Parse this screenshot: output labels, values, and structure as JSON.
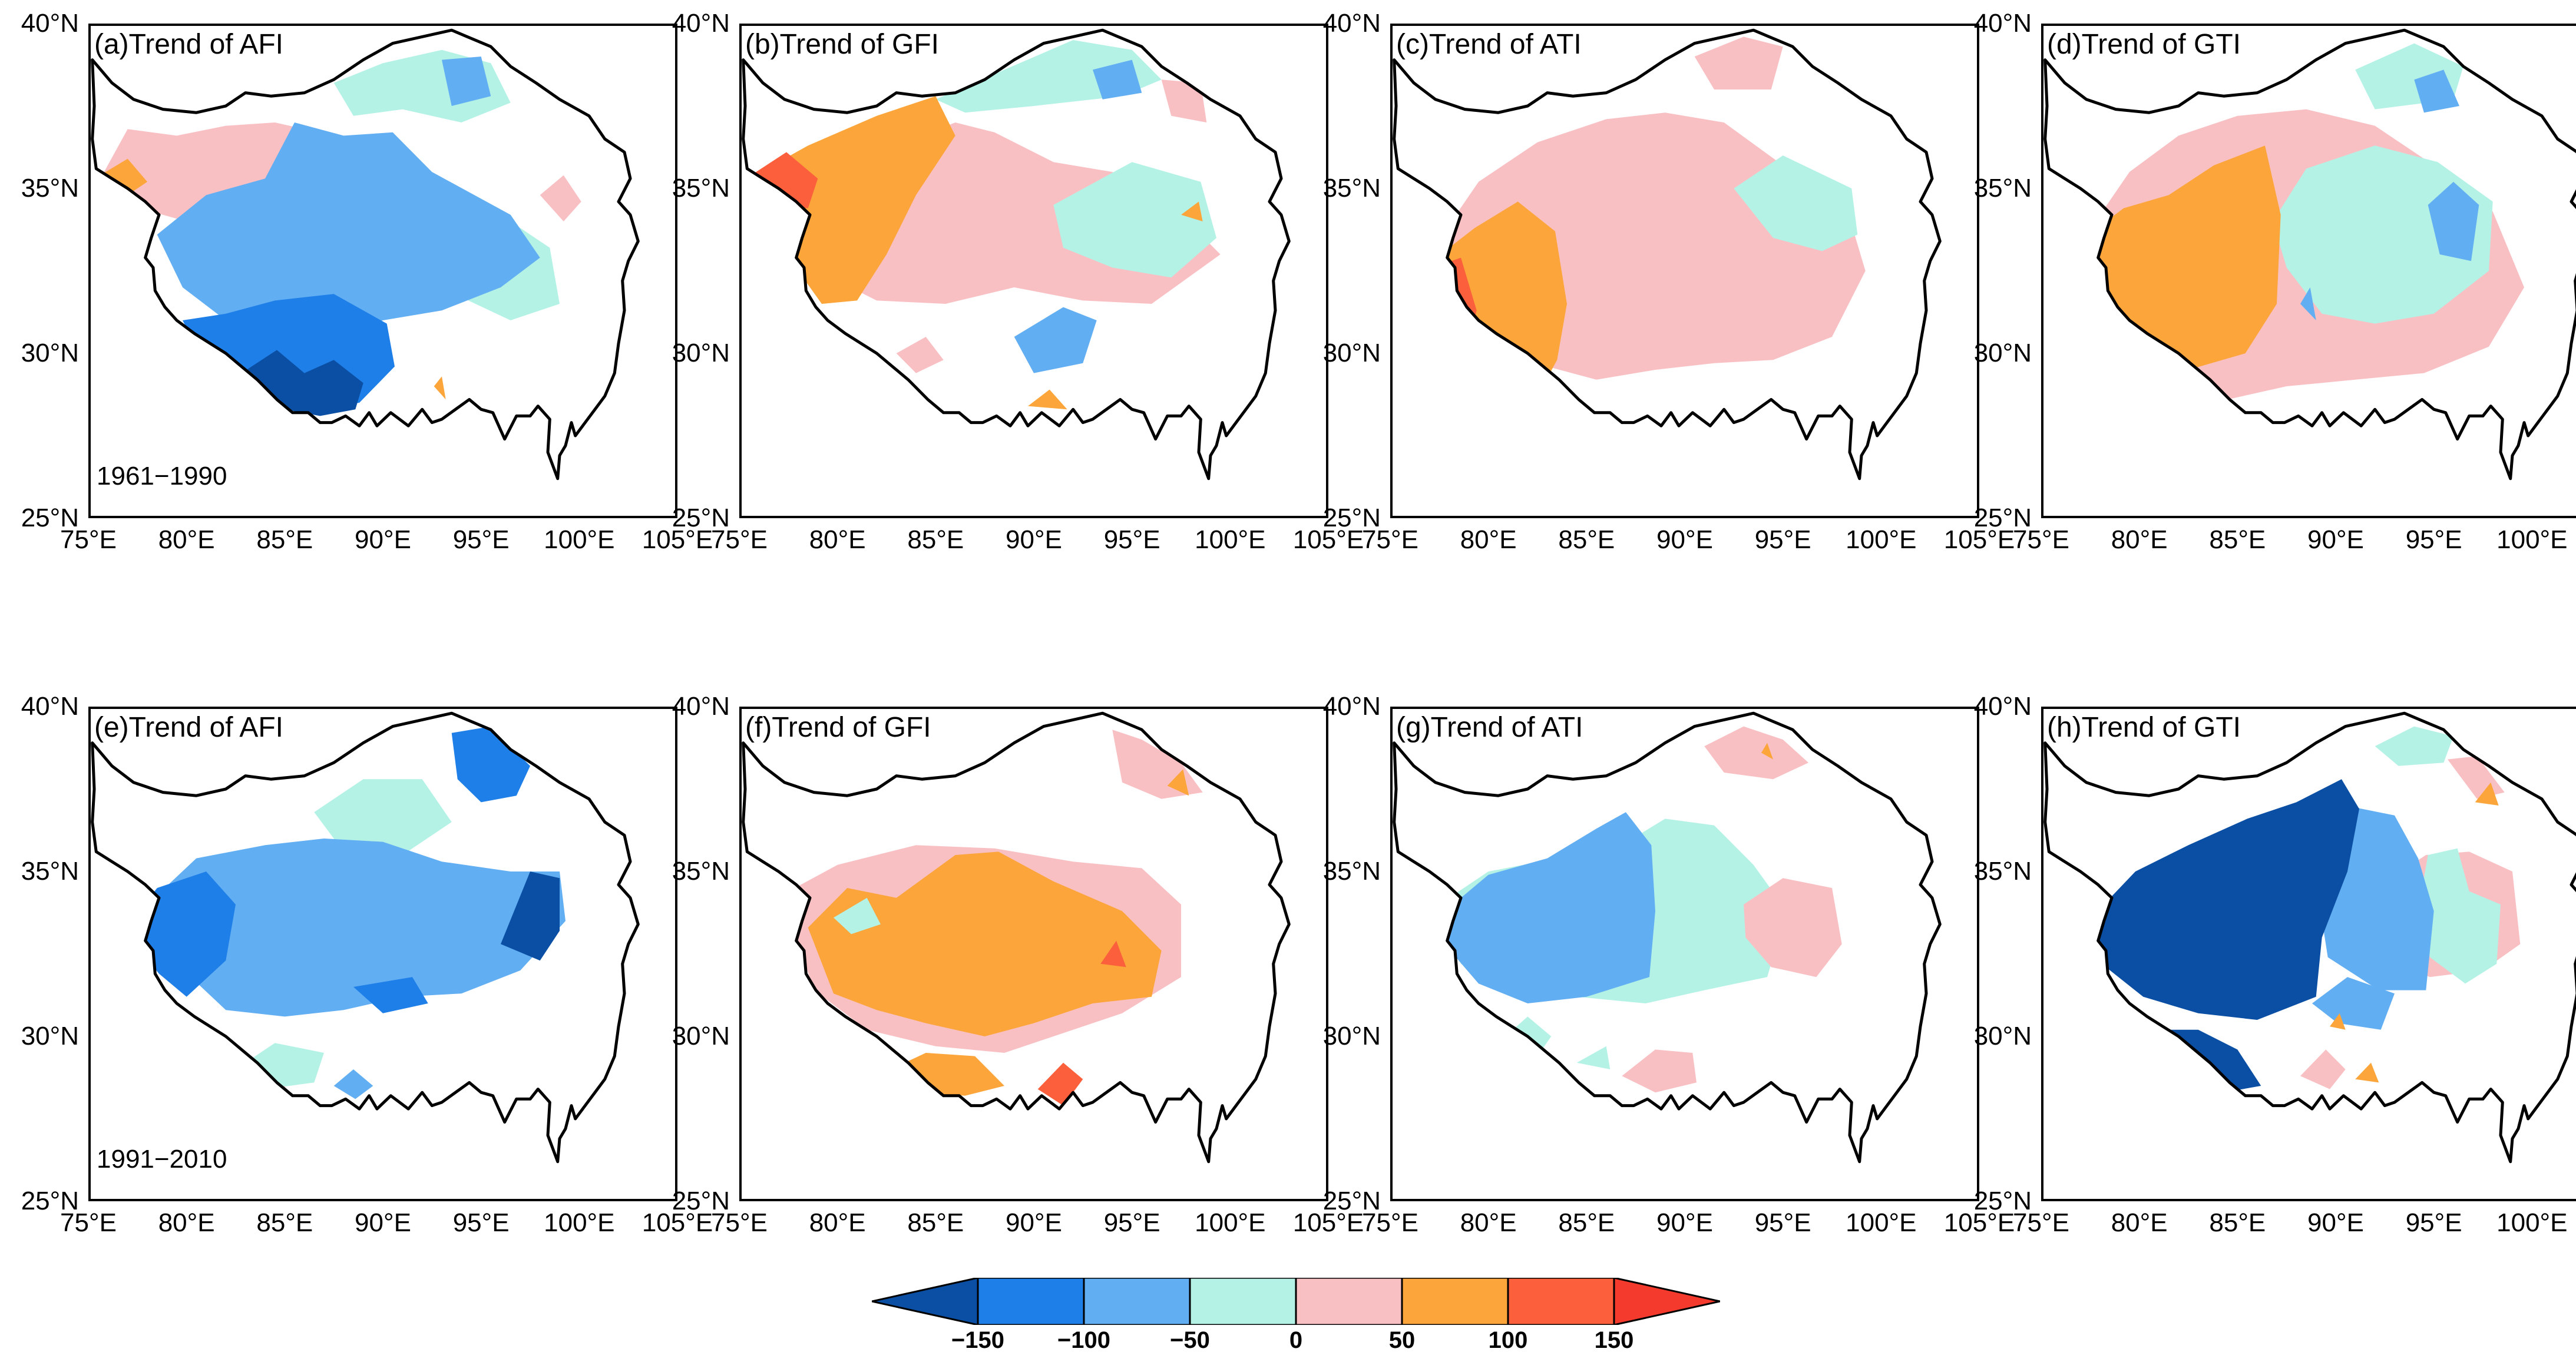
{
  "figure": {
    "panels": [
      {
        "label": "(a)Trend of AFI",
        "period": "1961−1990"
      },
      {
        "label": "(b)Trend of GFI",
        "period": ""
      },
      {
        "label": "(c)Trend of ATI",
        "period": ""
      },
      {
        "label": "(d)Trend of GTI",
        "period": ""
      },
      {
        "label": "(e)Trend of AFI",
        "period": "1991−2010"
      },
      {
        "label": "(f)Trend of GFI",
        "period": ""
      },
      {
        "label": "(g)Trend of ATI",
        "period": ""
      },
      {
        "label": "(h)Trend of GTI",
        "period": ""
      }
    ],
    "y_ticks": [
      "40°N",
      "35°N",
      "30°N",
      "25°N"
    ],
    "x_ticks": [
      "75°E",
      "80°E",
      "85°E",
      "90°E",
      "95°E",
      "100°E",
      "105°E"
    ],
    "colorbar": {
      "ticks": [
        "−150",
        "−100",
        "−50",
        "0",
        "50",
        "100",
        "150"
      ],
      "colors": [
        "#0a4fa3",
        "#1f7fe8",
        "#62aef2",
        "#b4f2e6",
        "#f9c0c4",
        "#fba53a",
        "#fb5f3c",
        "#f33a2d"
      ]
    }
  }
}
